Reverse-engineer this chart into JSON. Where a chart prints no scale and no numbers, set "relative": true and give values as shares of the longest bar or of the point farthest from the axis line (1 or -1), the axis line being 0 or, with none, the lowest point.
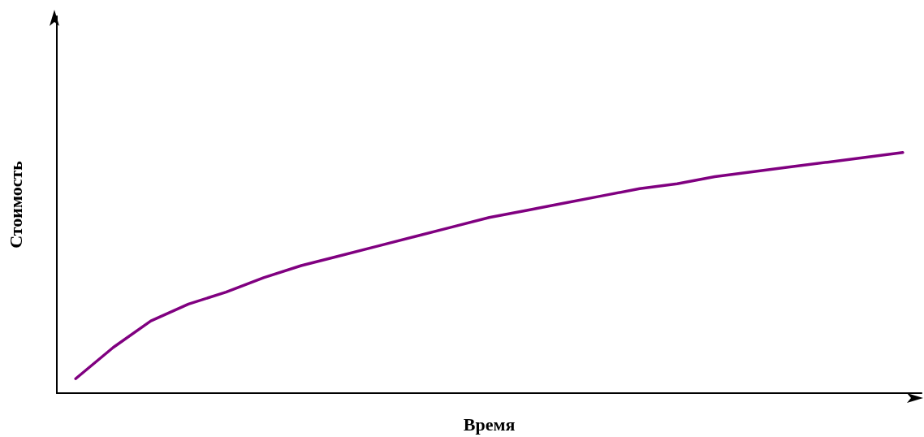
{
  "chart_data": {
    "type": "line",
    "relative": true,
    "xlabel": "Время",
    "ylabel": "Стоимость",
    "categories": [
      null,
      null,
      null,
      null,
      null,
      null,
      null,
      null,
      null,
      null,
      null,
      null,
      null,
      null,
      null,
      null,
      null,
      null,
      null,
      null,
      null,
      null,
      null
    ],
    "series": [
      {
        "color": "#800080",
        "values": [
          0.06,
          0.19,
          0.3,
          0.37,
          0.42,
          0.48,
          0.53,
          0.57,
          0.61,
          0.65,
          0.69,
          0.73,
          0.76,
          0.79,
          0.82,
          0.85,
          0.87,
          0.9,
          0.92,
          0.94,
          0.96,
          0.98,
          1
        ]
      }
    ],
    "grid": false,
    "marker": "none",
    "line_style": "solid"
  }
}
